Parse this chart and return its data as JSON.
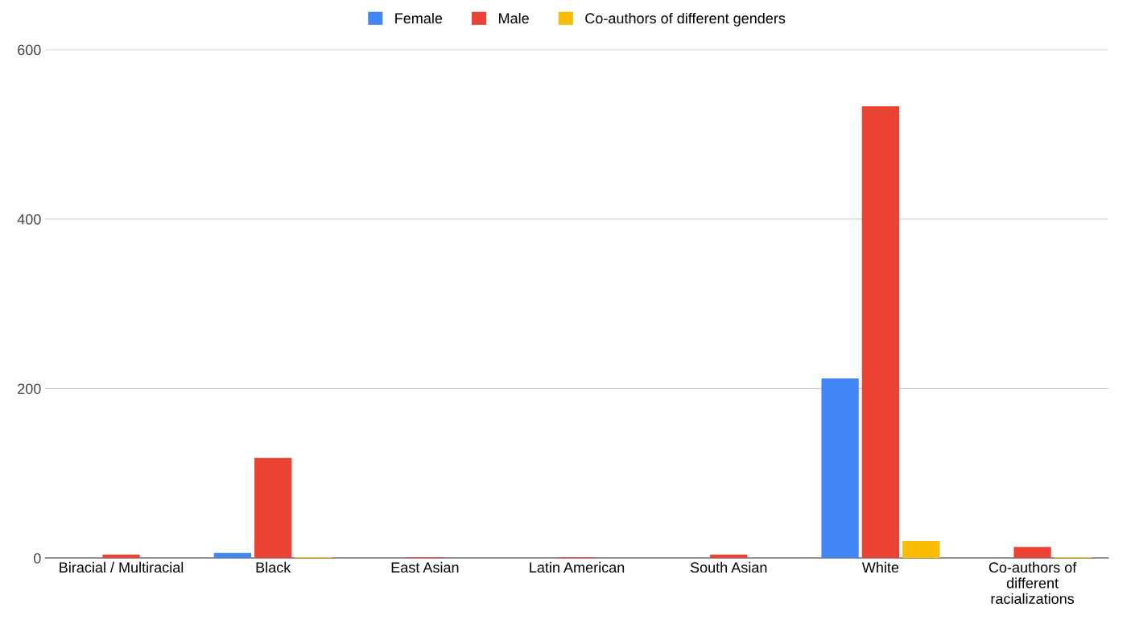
{
  "chart_data": {
    "type": "bar",
    "categories": [
      "Biracial / Multiracial",
      "Black",
      "East Asian",
      "Latin American",
      "South Asian",
      "White",
      "Co-authors of different racializations"
    ],
    "series": [
      {
        "name": "Female",
        "color": "#4285f4",
        "values": [
          0,
          6,
          0,
          0,
          0,
          212,
          0
        ]
      },
      {
        "name": "Male",
        "color": "#ea4335",
        "values": [
          4,
          118,
          1,
          1,
          4,
          533,
          13
        ]
      },
      {
        "name": "Co-authors of different genders",
        "color": "#fbbc04",
        "values": [
          0,
          1,
          0,
          0,
          0,
          20,
          1
        ]
      }
    ],
    "ylim": [
      0,
      600
    ],
    "yticks": [
      0,
      200,
      400,
      600
    ],
    "grid": "y",
    "legend": "top"
  }
}
